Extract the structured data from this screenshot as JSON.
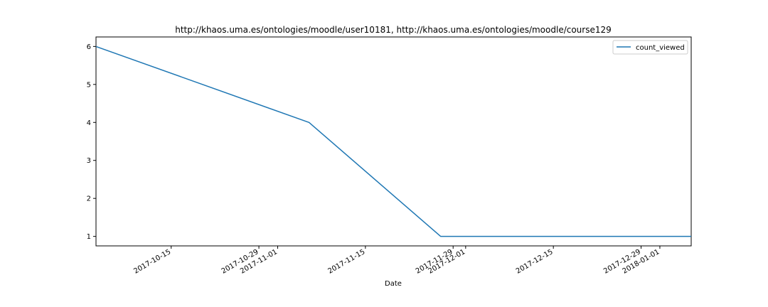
{
  "chart_data": {
    "type": "line",
    "title": "http://khaos.uma.es/ontologies/moodle/user10181, http://khaos.uma.es/ontologies/moodle/course129",
    "xlabel": "Date",
    "ylabel": "",
    "x_type": "date",
    "xlim": [
      "2017-10-03",
      "2018-01-06"
    ],
    "ylim": [
      0.75,
      6.25
    ],
    "x_ticks": [
      "2017-10-15",
      "2017-10-29",
      "2017-11-01",
      "2017-11-15",
      "2017-11-29",
      "2017-12-01",
      "2017-12-15",
      "2017-12-29",
      "2018-01-01"
    ],
    "y_ticks": [
      1,
      2,
      3,
      4,
      5,
      6
    ],
    "grid": false,
    "legend_position": "top-right",
    "series": [
      {
        "name": "count_viewed",
        "color": "#1f77b4",
        "x": [
          "2017-10-03",
          "2017-11-06",
          "2017-11-27",
          "2018-01-06"
        ],
        "values": [
          6,
          4,
          1,
          1
        ]
      }
    ]
  }
}
